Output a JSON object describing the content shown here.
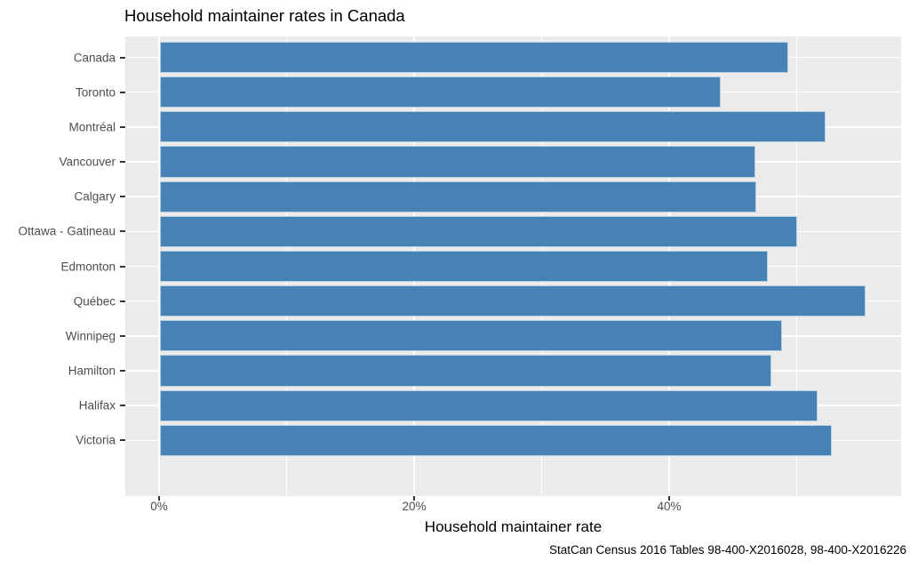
{
  "chart_data": {
    "type": "bar",
    "orientation": "horizontal",
    "title": "Household maintainer rates in Canada",
    "xlabel": "Household maintainer rate",
    "ylabel": "",
    "caption": "StatCan Census 2016 Tables 98-400-X2016028, 98-400-X2016226",
    "categories": [
      "Canada",
      "Toronto",
      "Montréal",
      "Vancouver",
      "Calgary",
      "Ottawa - Gatineau",
      "Edmonton",
      "Québec",
      "Winnipeg",
      "Hamilton",
      "Halifax",
      "Victoria"
    ],
    "values": [
      49.3,
      44.0,
      52.2,
      46.7,
      46.8,
      50.0,
      47.7,
      55.4,
      48.8,
      48.0,
      51.6,
      52.7
    ],
    "unit": "%",
    "x_ticks": [
      {
        "label": "0%",
        "value": 0
      },
      {
        "label": "20%",
        "value": 20
      },
      {
        "label": "40%",
        "value": 40
      }
    ],
    "x_minor_ticks": [
      10,
      30,
      50
    ],
    "xlim": [
      -2.7,
      58.2
    ],
    "grid": true,
    "legend": "none",
    "colors": {
      "bar_fill": "#4682B4",
      "bar_edge": "#BAD1E4",
      "panel_bg": "#EBEBEB",
      "gridline": "#FFFFFF",
      "tick_text": "#4D4D4D",
      "text": "#000000"
    }
  }
}
